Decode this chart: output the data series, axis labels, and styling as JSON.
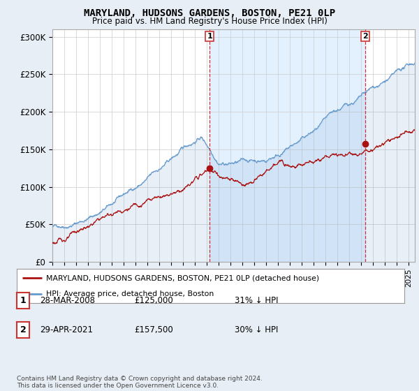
{
  "title": "MARYLAND, HUDSONS GARDENS, BOSTON, PE21 0LP",
  "subtitle": "Price paid vs. HM Land Registry's House Price Index (HPI)",
  "ylabel_ticks": [
    "£0",
    "£50K",
    "£100K",
    "£150K",
    "£200K",
    "£250K",
    "£300K"
  ],
  "ytick_values": [
    0,
    50000,
    100000,
    150000,
    200000,
    250000,
    300000
  ],
  "ylim": [
    0,
    310000
  ],
  "xlim_start": 1995.0,
  "xlim_end": 2025.5,
  "hpi_color": "#6699cc",
  "hpi_fill_color": "#ddeeff",
  "price_color": "#aa1111",
  "marker1_date_x": 2008.24,
  "marker1_y": 125000,
  "marker2_date_x": 2021.33,
  "marker2_y": 157500,
  "legend_line1": "MARYLAND, HUDSONS GARDENS, BOSTON, PE21 0LP (detached house)",
  "legend_line2": "HPI: Average price, detached house, Boston",
  "table_row1": [
    "1",
    "28-MAR-2008",
    "£125,000",
    "31% ↓ HPI"
  ],
  "table_row2": [
    "2",
    "29-APR-2021",
    "£157,500",
    "30% ↓ HPI"
  ],
  "footer": "Contains HM Land Registry data © Crown copyright and database right 2024.\nThis data is licensed under the Open Government Licence v3.0.",
  "bg_color": "#e8eef5",
  "plot_bg_color": "#ffffff"
}
